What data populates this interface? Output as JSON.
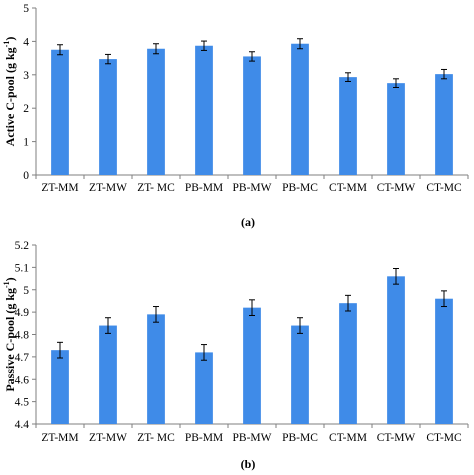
{
  "chart_data": [
    {
      "type": "bar",
      "panel_label": "(a)",
      "ylabel": "Active C-pool (g kg",
      "ylabel_sup": "-1",
      "ylabel_close": ")",
      "ylim": [
        0,
        5
      ],
      "yticks": [
        "0",
        "1",
        "2",
        "3",
        "4",
        "5"
      ],
      "categories": [
        "ZT-MM",
        "ZT-MW",
        "ZT- MC",
        "PB-MM",
        "PB-MW",
        "PB-MC",
        "CT-MM",
        "CT-MW",
        "CT-MC"
      ],
      "values": [
        3.75,
        3.47,
        3.78,
        3.87,
        3.55,
        3.93,
        2.93,
        2.75,
        3.02
      ],
      "errors": [
        0.15,
        0.14,
        0.15,
        0.14,
        0.14,
        0.15,
        0.13,
        0.13,
        0.14
      ],
      "grid": false,
      "color": "#3f8be8"
    },
    {
      "type": "bar",
      "panel_label": "(b)",
      "ylabel": "Passive C-pool (g kg",
      "ylabel_sup": "-1",
      "ylabel_close": ")",
      "ylim": [
        4.4,
        5.2
      ],
      "yticks": [
        "4.4",
        "4.5",
        "4.6",
        "4.7",
        "4.8",
        "4.9",
        "5",
        "5.1",
        "5.2"
      ],
      "categories": [
        "ZT-MM",
        "ZT-MW",
        "ZT- MC",
        "PB-MM",
        "PB-MW",
        "PB-MC",
        "CT-MM",
        "CT-MW",
        "CT-MC"
      ],
      "values": [
        4.73,
        4.84,
        4.89,
        4.72,
        4.92,
        4.84,
        4.94,
        5.06,
        4.96
      ],
      "errors": [
        0.035,
        0.035,
        0.035,
        0.035,
        0.035,
        0.035,
        0.035,
        0.035,
        0.035
      ],
      "grid": false,
      "color": "#3f8be8"
    }
  ]
}
